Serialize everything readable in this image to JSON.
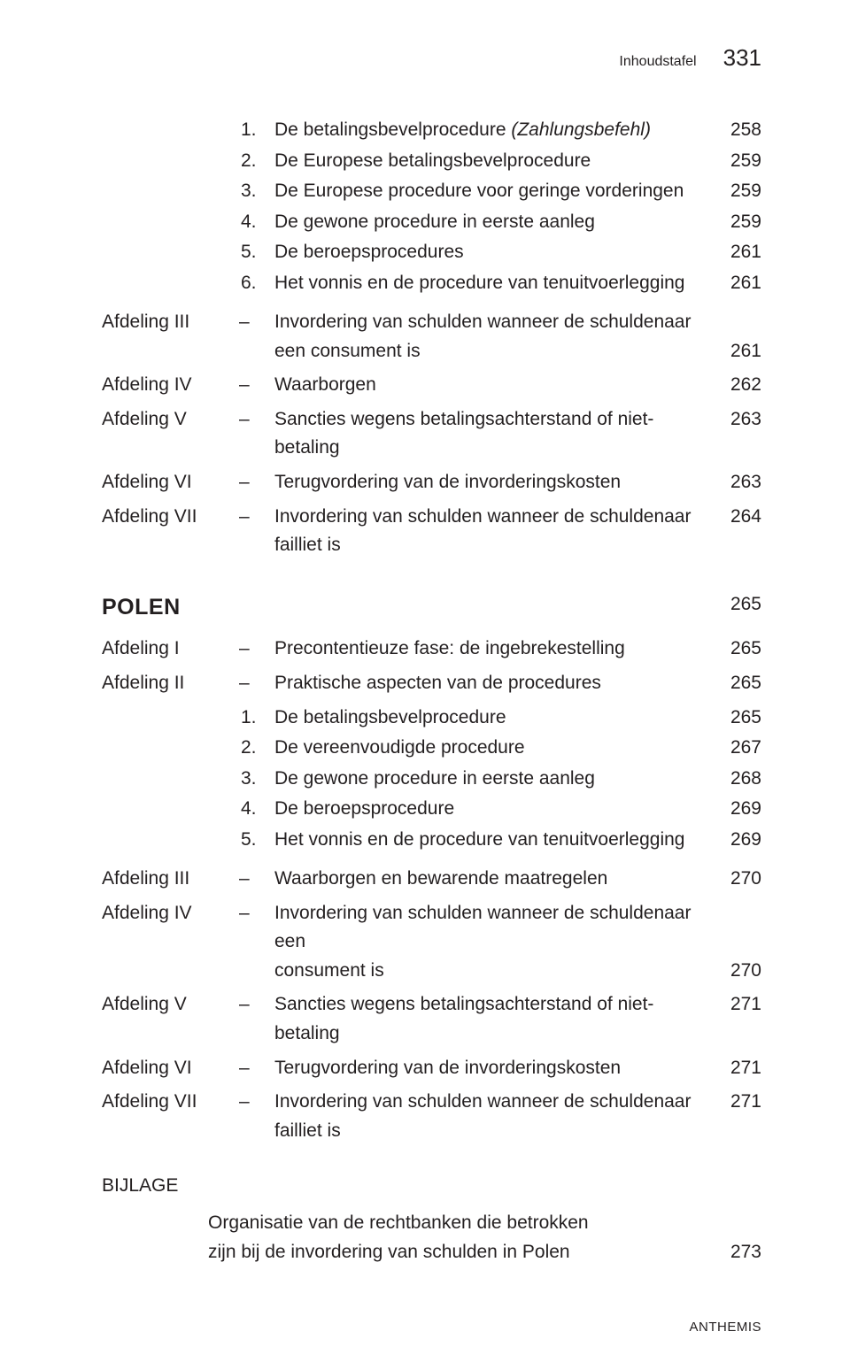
{
  "header": {
    "title": "Inhoudstafel",
    "page": "331"
  },
  "section1": {
    "items": [
      {
        "n": "1.",
        "label_pre": "De betalingsbevelprocedure ",
        "label_ital": "(Zahlungsbefehl)",
        "page": "258"
      },
      {
        "n": "2.",
        "label_pre": "De Europese betalingsbevelprocedure",
        "label_ital": "",
        "page": "259"
      },
      {
        "n": "3.",
        "label_pre": "De Europese procedure voor geringe vorderingen",
        "label_ital": "",
        "page": "259"
      },
      {
        "n": "4.",
        "label_pre": "De gewone procedure in eerste aanleg",
        "label_ital": "",
        "page": "259"
      },
      {
        "n": "5.",
        "label_pre": "De beroepsprocedures",
        "label_ital": "",
        "page": "261"
      },
      {
        "n": "6.",
        "label_pre": "Het vonnis en de procedure van tenuitvoerlegging",
        "label_ital": "",
        "page": "261"
      }
    ]
  },
  "afdelingen1": [
    {
      "afd": "Afdeling III",
      "text_l1": "Invordering van schulden wanneer de schuldenaar",
      "text_l2": "een consument is",
      "page": "261"
    },
    {
      "afd": "Afdeling IV",
      "text_l1": "Waarborgen",
      "text_l2": "",
      "page": "262"
    },
    {
      "afd": "Afdeling V",
      "text_l1": "Sancties wegens betalingsachterstand of niet-betaling",
      "text_l2": "",
      "page": "263"
    },
    {
      "afd": "Afdeling VI",
      "text_l1": "Terugvordering van de invorderingskosten",
      "text_l2": "",
      "page": "263"
    },
    {
      "afd": "Afdeling VII",
      "text_l1": "Invordering van schulden wanneer de schuldenaar failliet is",
      "text_l2": "",
      "page": "264"
    }
  ],
  "country": {
    "name": "POLEN",
    "page": "265"
  },
  "afdelingen2a": [
    {
      "afd": "Afdeling I",
      "text": "Precontentieuze fase: de ingebrekestelling",
      "page": "265"
    },
    {
      "afd": "Afdeling II",
      "text": "Praktische aspecten van de procedures",
      "page": "265"
    }
  ],
  "section2": {
    "items": [
      {
        "n": "1.",
        "label": "De betalingsbevelprocedure",
        "page": "265"
      },
      {
        "n": "2.",
        "label": "De vereenvoudigde procedure",
        "page": "267"
      },
      {
        "n": "3.",
        "label": "De gewone procedure in eerste aanleg",
        "page": "268"
      },
      {
        "n": "4.",
        "label": "De beroepsprocedure",
        "page": "269"
      },
      {
        "n": "5.",
        "label": "Het vonnis en de procedure van tenuitvoerlegging",
        "page": "269"
      }
    ]
  },
  "afdelingen2b": [
    {
      "afd": "Afdeling III",
      "text_l1": "Waarborgen en bewarende maatregelen",
      "text_l2": "",
      "page": "270"
    },
    {
      "afd": "Afdeling IV",
      "text_l1": "Invordering van schulden wanneer de schuldenaar een",
      "text_l2": "consument is",
      "page": "270"
    },
    {
      "afd": "Afdeling V",
      "text_l1": "Sancties wegens betalingsachterstand of niet-betaling",
      "text_l2": "",
      "page": "271"
    },
    {
      "afd": "Afdeling VI",
      "text_l1": "Terugvordering van de invorderingskosten",
      "text_l2": "",
      "page": "271"
    },
    {
      "afd": "Afdeling VII",
      "text_l1": "Invordering van schulden wanneer de schuldenaar failliet is",
      "text_l2": "",
      "page": "271"
    }
  ],
  "bijlage": {
    "label": "BIJLAGE",
    "text_l1": "Organisatie van de rechtbanken die betrokken",
    "text_l2": "zijn bij de invordering van schulden in Polen",
    "page": "273"
  },
  "footer": "ANTHEMIS"
}
